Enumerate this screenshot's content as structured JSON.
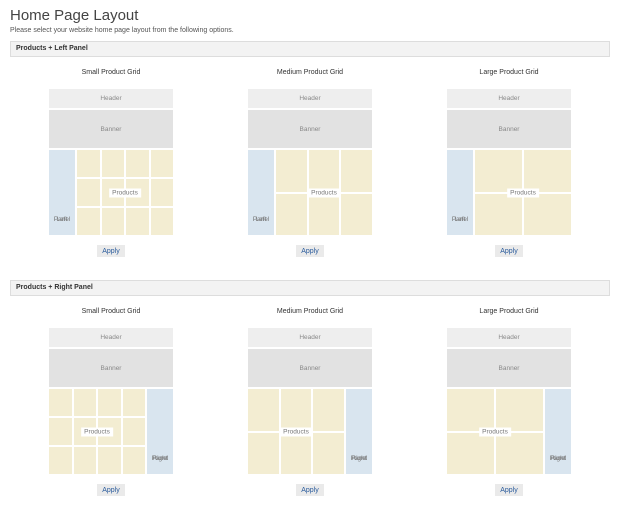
{
  "page": {
    "title": "Home Page Layout",
    "subtitle": "Please select your website home page layout from the following options."
  },
  "colors": {
    "header_block": "#eeeeee",
    "banner_block": "#e2e2e2",
    "panel_block": "#d9e5ef",
    "product_block": "#f3edd2",
    "apply_text": "#2a5b9c"
  },
  "sections": [
    {
      "title": "Products + Left Panel",
      "panel_side": "left",
      "options": [
        {
          "title": "Small Product Grid",
          "header": "Header",
          "banner": "Banner",
          "panel_lines": [
            "Left",
            "Panel"
          ],
          "products": "Products",
          "grid_cols": 4,
          "grid_rows": 3,
          "apply": "Apply"
        },
        {
          "title": "Medium Product Grid",
          "header": "Header",
          "banner": "Banner",
          "panel_lines": [
            "Left",
            "Panel"
          ],
          "products": "Products",
          "grid_cols": 3,
          "grid_rows": 2,
          "apply": "Apply"
        },
        {
          "title": "Large Product Grid",
          "header": "Header",
          "banner": "Banner",
          "panel_lines": [
            "Left",
            "Panel"
          ],
          "products": "Products",
          "grid_cols": 2,
          "grid_rows": 2,
          "apply": "Apply"
        }
      ]
    },
    {
      "title": "Products + Right Panel",
      "panel_side": "right",
      "options": [
        {
          "title": "Small Product Grid",
          "header": "Header",
          "banner": "Banner",
          "panel_lines": [
            "Right",
            "Panel"
          ],
          "products": "Products",
          "grid_cols": 4,
          "grid_rows": 3,
          "apply": "Apply"
        },
        {
          "title": "Medium Product Grid",
          "header": "Header",
          "banner": "Banner",
          "panel_lines": [
            "Right",
            "Panel"
          ],
          "products": "Products",
          "grid_cols": 3,
          "grid_rows": 2,
          "apply": "Apply"
        },
        {
          "title": "Large Product Grid",
          "header": "Header",
          "banner": "Banner",
          "panel_lines": [
            "Right",
            "Panel"
          ],
          "products": "Products",
          "grid_cols": 2,
          "grid_rows": 2,
          "apply": "Apply"
        }
      ]
    }
  ]
}
